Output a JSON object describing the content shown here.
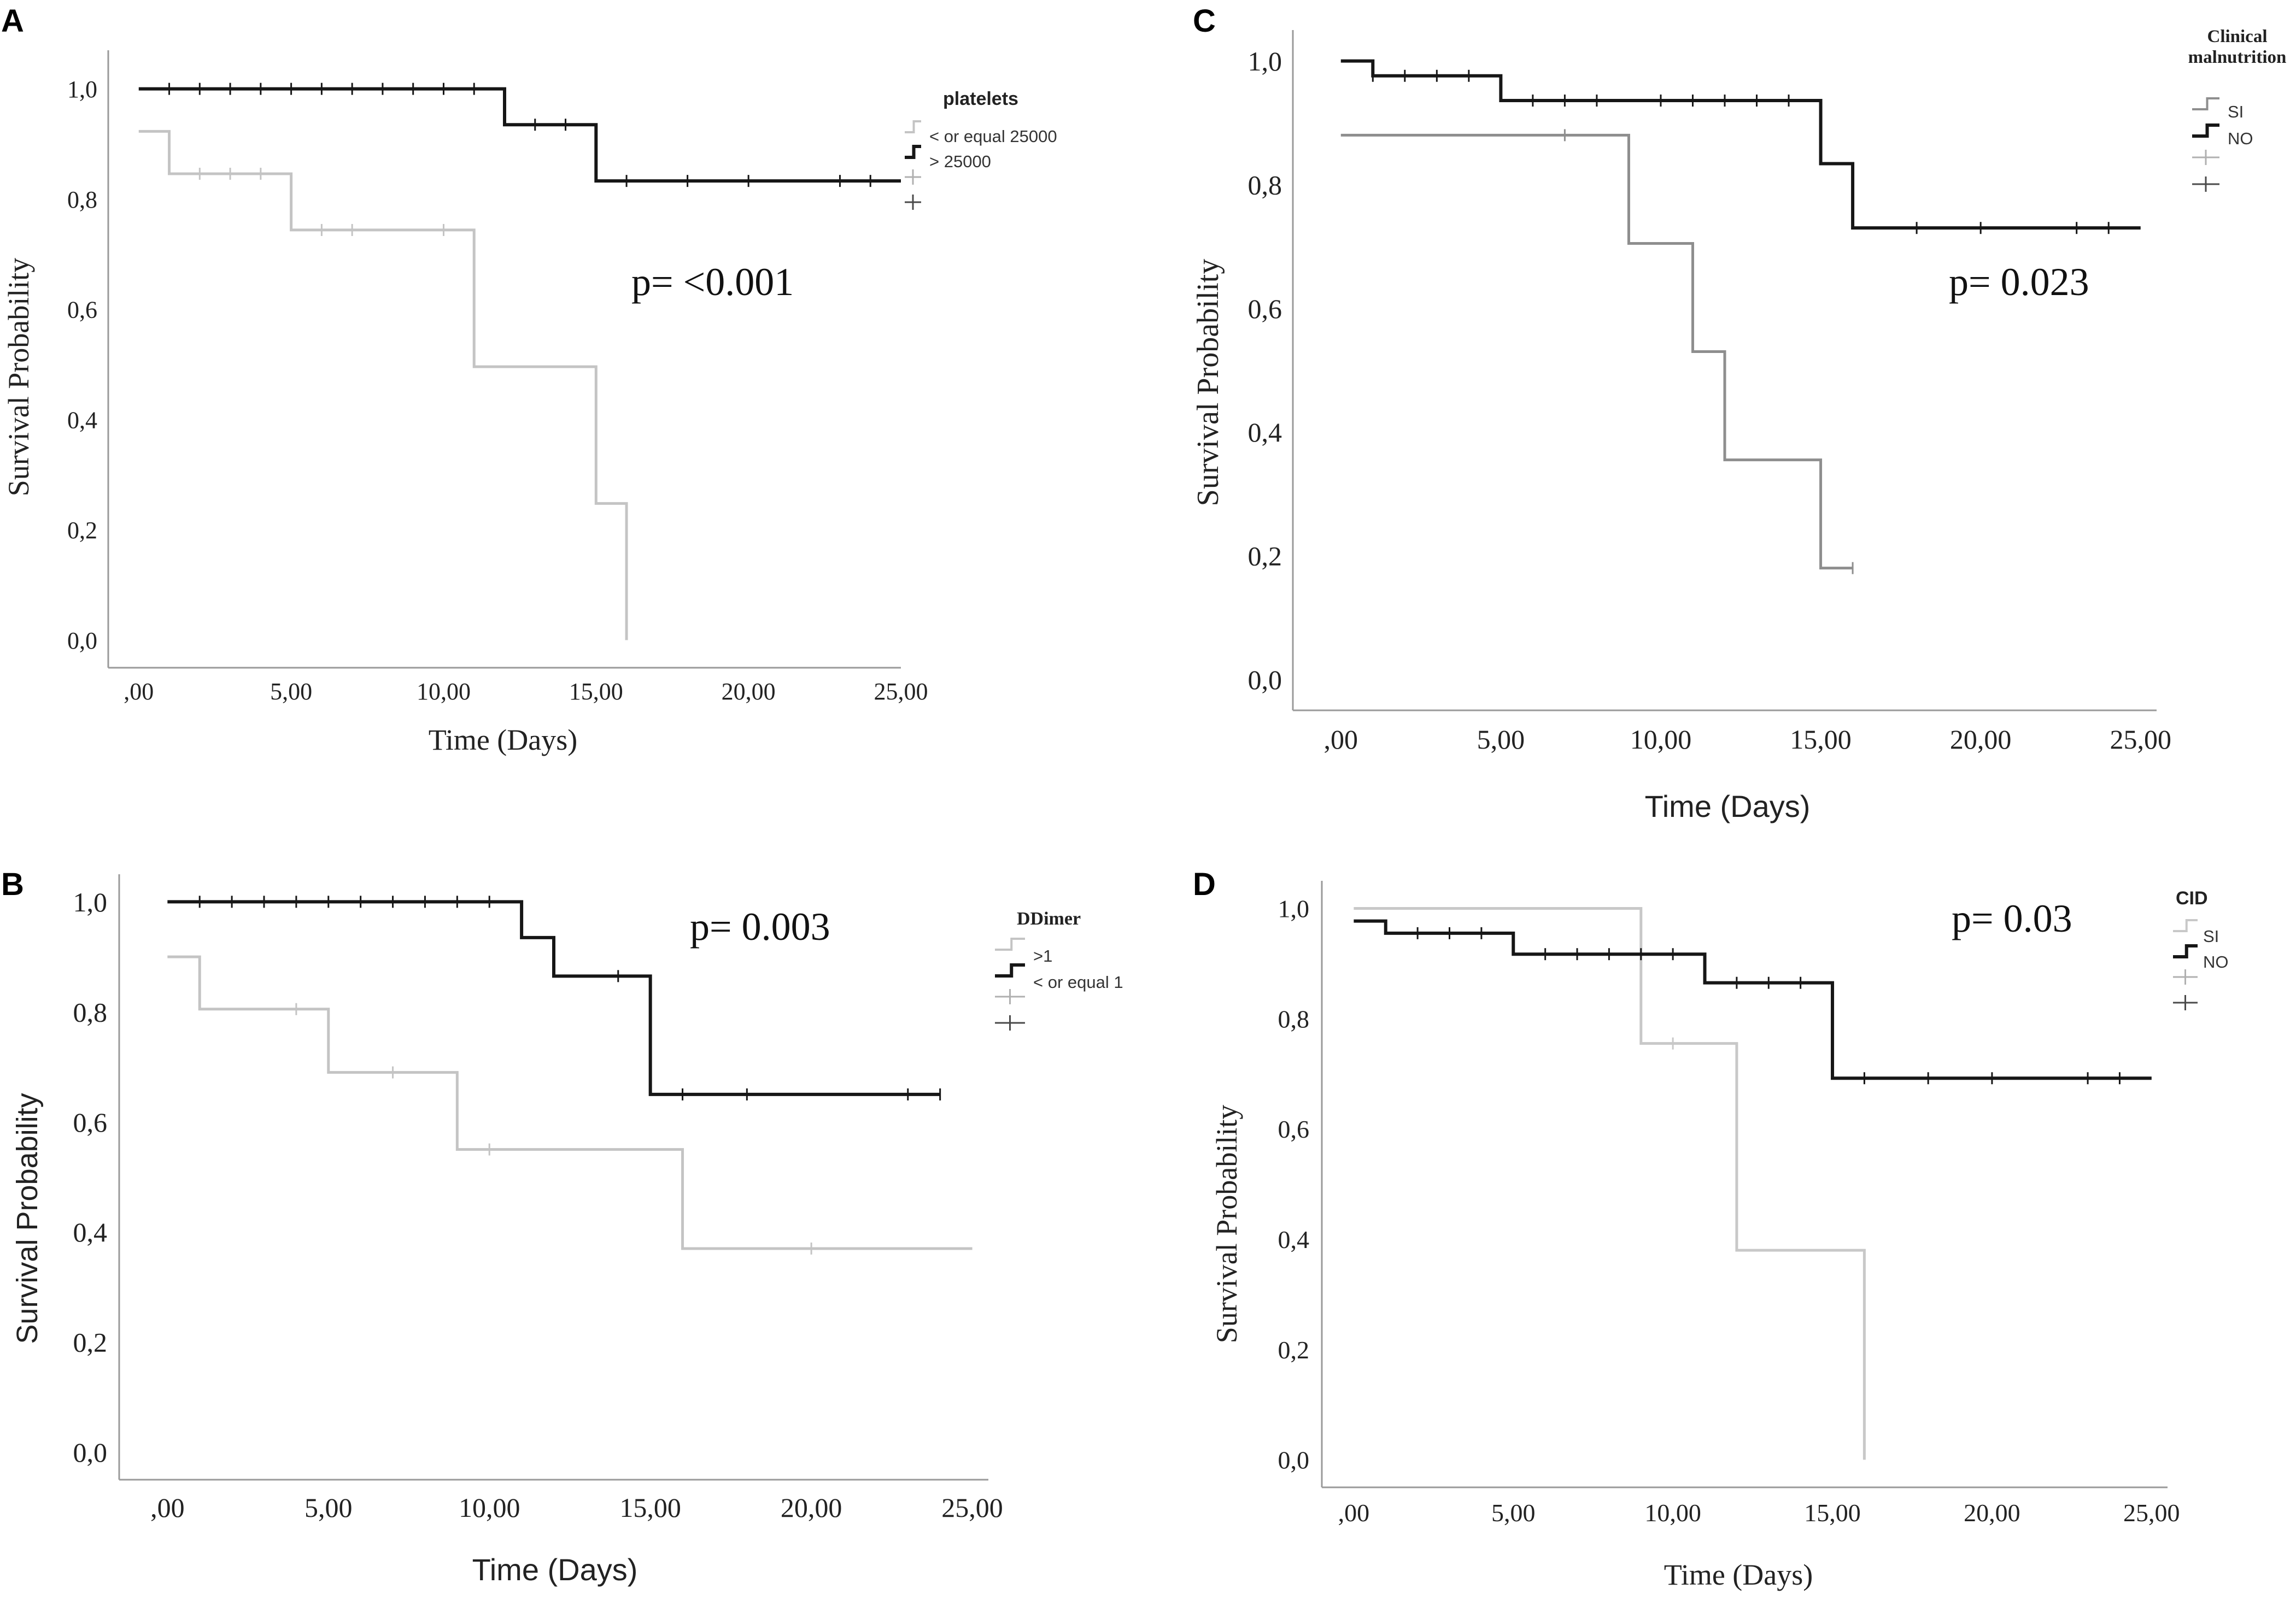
{
  "figure": {
    "panels": [
      {
        "letter": "A"
      },
      {
        "letter": "C"
      },
      {
        "letter": "B"
      },
      {
        "letter": "D"
      }
    ]
  },
  "chart_data": [
    {
      "type": "line",
      "step": true,
      "panel": "A",
      "title": "",
      "xlabel": "Time (Days)",
      "ylabel": "Survival Probability",
      "xlim": [
        -1,
        25
      ],
      "ylim": [
        -0.05,
        1.07
      ],
      "xticks": [
        0,
        5,
        10,
        15,
        20,
        25
      ],
      "xtick_labels": [
        ",00",
        "5,00",
        "10,00",
        "15,00",
        "20,00",
        "25,00"
      ],
      "yticks": [
        0,
        0.2,
        0.4,
        0.6,
        0.8,
        1.0
      ],
      "ytick_labels": [
        "0,0",
        "0,2",
        "0,4",
        "0,6",
        "0,8",
        "1,0"
      ],
      "legend_title": "platelets",
      "legend_position": "top-right",
      "legend_blank_rows": 2,
      "annotation": "p= <0.001",
      "series": [
        {
          "name": "< or equal 25000",
          "color": "#c4c4c4",
          "x": [
            0,
            1,
            5,
            11,
            15,
            16
          ],
          "y": [
            0.923,
            0.846,
            0.744,
            0.496,
            0.248,
            0.0
          ],
          "end_x": 16,
          "censor_x": [
            2,
            3,
            4,
            6,
            7,
            10
          ],
          "censor_y": [
            0.846,
            0.846,
            0.846,
            0.744,
            0.744,
            0.744
          ]
        },
        {
          "name": "> 25000",
          "color": "#161616",
          "x": [
            0,
            12,
            15
          ],
          "y": [
            1.0,
            0.935,
            0.833
          ],
          "end_x": 25,
          "censor_x": [
            1,
            2,
            3,
            4,
            5,
            6,
            7,
            8,
            9,
            10,
            11,
            13,
            14,
            16,
            18,
            20,
            23,
            24
          ],
          "censor_y": [
            1,
            1,
            1,
            1,
            1,
            1,
            1,
            1,
            1,
            1,
            1,
            0.935,
            0.935,
            0.833,
            0.833,
            0.833,
            0.833,
            0.833
          ]
        }
      ]
    },
    {
      "type": "line",
      "step": true,
      "panel": "C",
      "title": "",
      "xlabel": "Time (Days)",
      "ylabel": "Survival Probability",
      "xlim": [
        -1.5,
        25.5
      ],
      "ylim": [
        -0.05,
        1.05
      ],
      "xticks": [
        0,
        5,
        10,
        15,
        20,
        25
      ],
      "xtick_labels": [
        ",00",
        "5,00",
        "10,00",
        "15,00",
        "20,00",
        "25,00"
      ],
      "yticks": [
        0,
        0.2,
        0.4,
        0.6,
        0.8,
        1.0
      ],
      "ytick_labels": [
        "0,0",
        "0,2",
        "0,4",
        "0,6",
        "0,8",
        "1,0"
      ],
      "legend_title": "Clinical malnutrition",
      "legend_position": "top-right",
      "legend_blank_rows": 2,
      "annotation": "p= 0.023",
      "series": [
        {
          "name": "SI",
          "color": "#8e8e8e",
          "x": [
            0,
            9,
            11,
            12,
            15
          ],
          "y": [
            0.88,
            0.705,
            0.53,
            0.355,
            0.18
          ],
          "end_x": 16,
          "censor_x": [
            7,
            16
          ],
          "censor_y": [
            0.88,
            0.18
          ]
        },
        {
          "name": "NO",
          "color": "#161616",
          "x": [
            0,
            1,
            5,
            15,
            16
          ],
          "y": [
            1.0,
            0.976,
            0.936,
            0.834,
            0.73
          ],
          "end_x": 25,
          "censor_x": [
            1,
            2,
            3,
            4,
            6,
            7,
            8,
            10,
            11,
            12,
            13,
            14,
            18,
            20,
            23,
            24
          ],
          "censor_y": [
            0.976,
            0.976,
            0.976,
            0.976,
            0.936,
            0.936,
            0.936,
            0.936,
            0.936,
            0.936,
            0.936,
            0.936,
            0.73,
            0.73,
            0.73,
            0.73
          ]
        }
      ]
    },
    {
      "type": "line",
      "step": true,
      "panel": "B",
      "title": "",
      "xlabel": "Time (Days)",
      "ylabel": "Survival Probability",
      "xlim": [
        -1.5,
        25.5
      ],
      "ylim": [
        -0.05,
        1.05
      ],
      "xticks": [
        0,
        5,
        10,
        15,
        20,
        25
      ],
      "xtick_labels": [
        ",00",
        "5,00",
        "10,00",
        "15,00",
        "20,00",
        "25,00"
      ],
      "yticks": [
        0,
        0.2,
        0.4,
        0.6,
        0.8,
        1.0
      ],
      "ytick_labels": [
        "0,0",
        "0,2",
        "0,4",
        "0,6",
        "0,8",
        "1,0"
      ],
      "legend_title": "DDimer",
      "legend_position": "top-right",
      "legend_blank_rows": 2,
      "annotation": "p= 0.003",
      "series": [
        {
          "name": ">1",
          "color": "#c4c4c4",
          "x": [
            0,
            1,
            5,
            9,
            16
          ],
          "y": [
            0.9,
            0.805,
            0.69,
            0.55,
            0.37
          ],
          "end_x": 25,
          "censor_x": [
            4,
            7,
            10,
            20
          ],
          "censor_y": [
            0.805,
            0.69,
            0.55,
            0.37
          ]
        },
        {
          "name": "< or equal 1",
          "color": "#161616",
          "x": [
            0,
            11,
            12,
            15
          ],
          "y": [
            1.0,
            0.935,
            0.865,
            0.65
          ],
          "end_x": 24,
          "censor_x": [
            1,
            2,
            3,
            4,
            5,
            6,
            7,
            8,
            9,
            10,
            14,
            16,
            18,
            23,
            24
          ],
          "censor_y": [
            1,
            1,
            1,
            1,
            1,
            1,
            1,
            1,
            1,
            1,
            0.865,
            0.65,
            0.65,
            0.65,
            0.65
          ]
        }
      ]
    },
    {
      "type": "line",
      "step": true,
      "panel": "D",
      "title": "",
      "xlabel": "Time (Days)",
      "ylabel": "Survival  Probability",
      "xlim": [
        -1,
        25.5
      ],
      "ylim": [
        -0.05,
        1.05
      ],
      "xticks": [
        0,
        5,
        10,
        15,
        20,
        25
      ],
      "xtick_labels": [
        ",00",
        "5,00",
        "10,00",
        "15,00",
        "20,00",
        "25,00"
      ],
      "yticks": [
        0,
        0.2,
        0.4,
        0.6,
        0.8,
        1.0
      ],
      "ytick_labels": [
        "0,0",
        "0,2",
        "0,4",
        "0,6",
        "0,8",
        "1,0"
      ],
      "legend_title": "CID",
      "legend_position": "top-right",
      "legend_blank_rows": 2,
      "annotation": "p= 0.03",
      "series": [
        {
          "name": "SI",
          "color": "#c8c8c8",
          "x": [
            0,
            9,
            12,
            16
          ],
          "y": [
            1.0,
            0.755,
            0.38,
            0.0
          ],
          "end_x": 16,
          "censor_x": [
            10
          ],
          "censor_y": [
            0.755
          ]
        },
        {
          "name": "NO",
          "color": "#161616",
          "x": [
            0,
            1,
            5,
            11,
            15
          ],
          "y": [
            0.977,
            0.955,
            0.917,
            0.865,
            0.692
          ],
          "end_x": 25,
          "censor_x": [
            2,
            3,
            4,
            6,
            7,
            8,
            9,
            10,
            12,
            13,
            14,
            16,
            18,
            20,
            23,
            24
          ],
          "censor_y": [
            0.955,
            0.955,
            0.955,
            0.917,
            0.917,
            0.917,
            0.917,
            0.917,
            0.865,
            0.865,
            0.865,
            0.692,
            0.692,
            0.692,
            0.692,
            0.692
          ]
        }
      ]
    }
  ]
}
